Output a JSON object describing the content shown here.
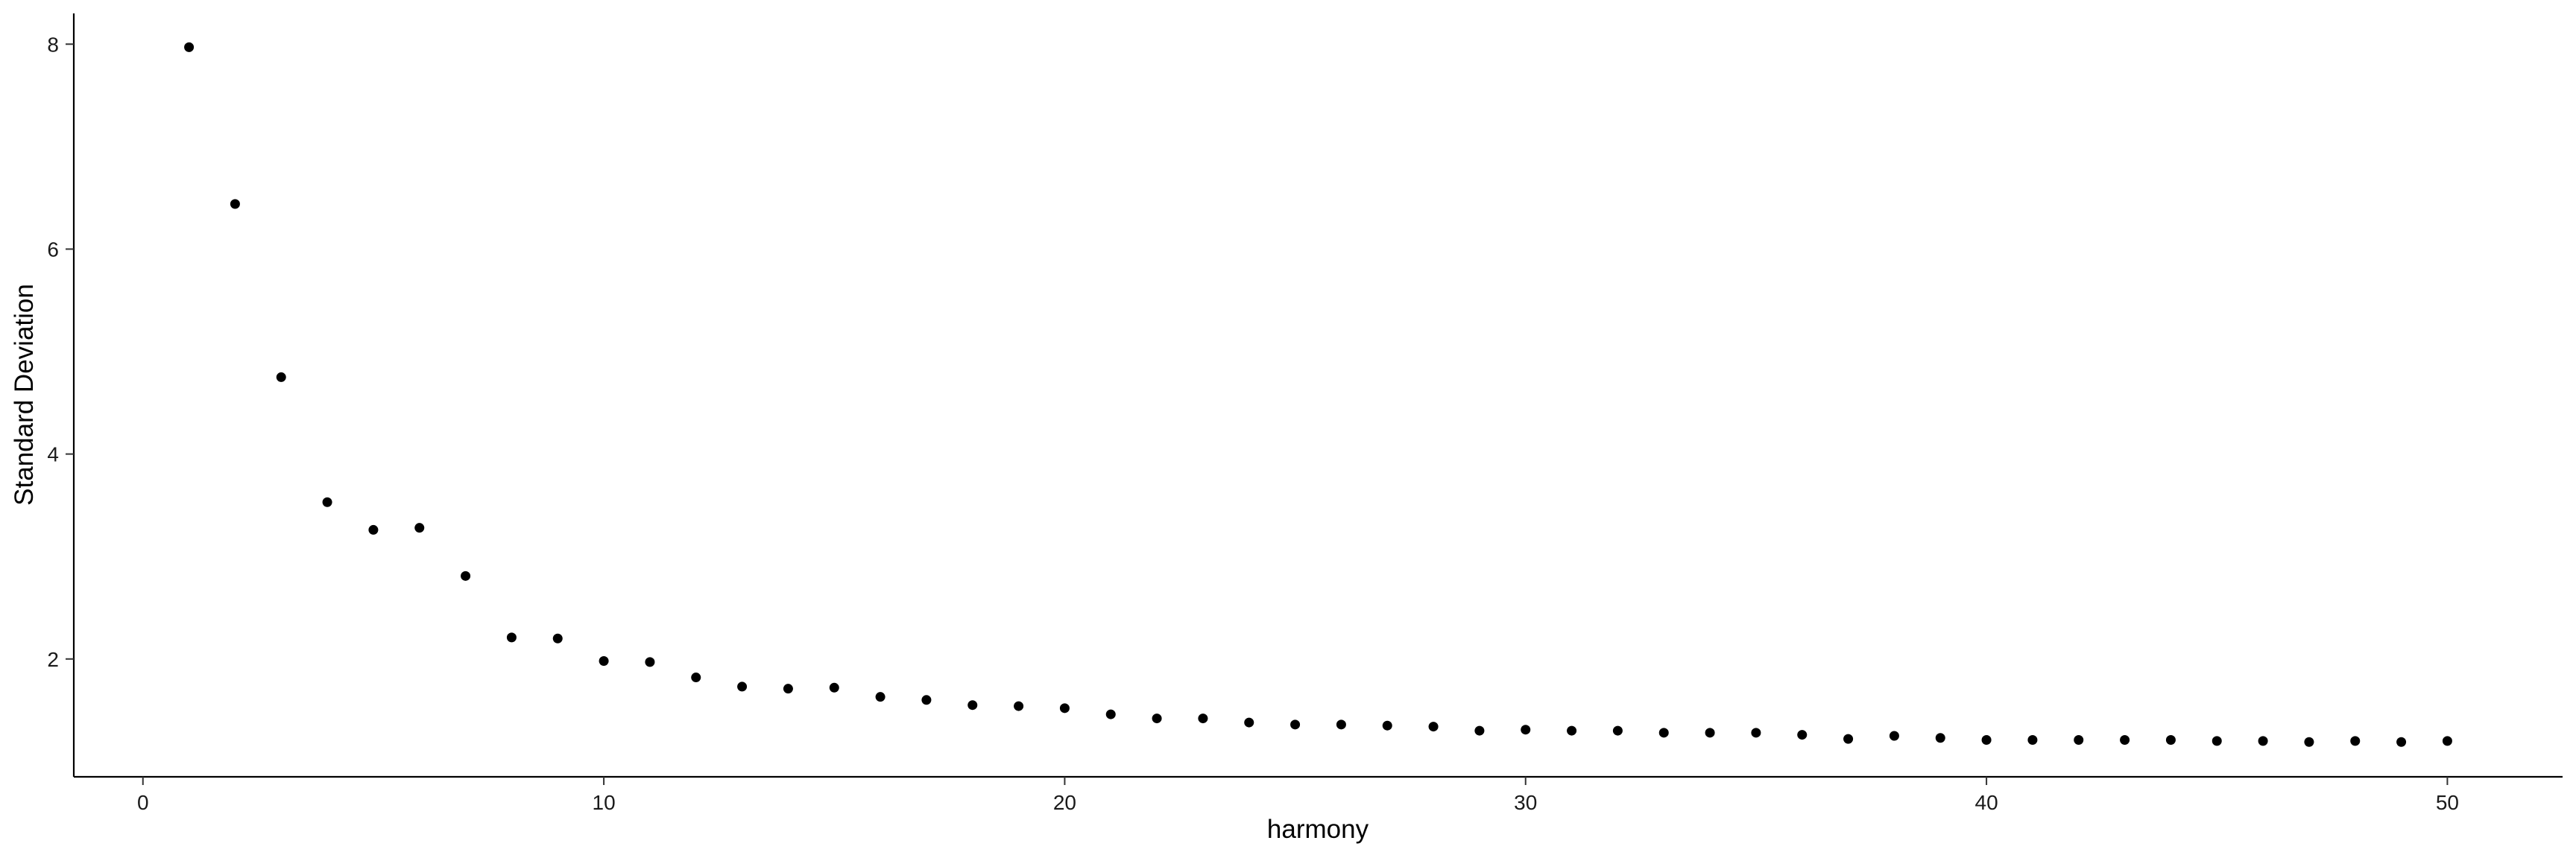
{
  "chart_data": {
    "type": "scatter",
    "title": "",
    "xlabel": "harmony",
    "ylabel": "Standard Deviation",
    "xlim": [
      -1.5,
      52.5
    ],
    "ylim": [
      0.85,
      8.3
    ],
    "xticks": [
      0,
      10,
      20,
      30,
      40,
      50
    ],
    "yticks": [
      2,
      4,
      6,
      8
    ],
    "grid": false,
    "point_color": "#000000",
    "series": [
      {
        "x": [
          1,
          2,
          3,
          4,
          5,
          6,
          7,
          8,
          9,
          10,
          11,
          12,
          13,
          14,
          15,
          16,
          17,
          18,
          19,
          20,
          21,
          22,
          23,
          24,
          25,
          26,
          27,
          28,
          29,
          30,
          31,
          32,
          33,
          34,
          35,
          36,
          37,
          38,
          39,
          40,
          41,
          42,
          43,
          44,
          45,
          46,
          47,
          48,
          49,
          50
        ],
        "values": [
          7.97,
          6.44,
          4.75,
          3.53,
          3.26,
          3.28,
          2.81,
          2.21,
          2.2,
          1.98,
          1.97,
          1.82,
          1.73,
          1.71,
          1.72,
          1.63,
          1.6,
          1.55,
          1.54,
          1.52,
          1.46,
          1.42,
          1.42,
          1.38,
          1.36,
          1.36,
          1.35,
          1.34,
          1.3,
          1.31,
          1.3,
          1.3,
          1.28,
          1.28,
          1.28,
          1.26,
          1.22,
          1.25,
          1.23,
          1.21,
          1.21,
          1.21,
          1.21,
          1.21,
          1.2,
          1.2,
          1.19,
          1.2,
          1.19,
          1.2
        ]
      }
    ]
  }
}
